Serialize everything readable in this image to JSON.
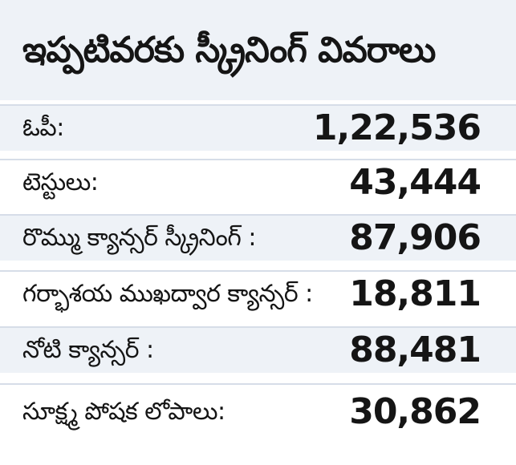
{
  "title": "ఇప్పటివరకు స్క్రీనింగ్ వివరాలు",
  "rows": [
    {
      "label": "ఓపీ:",
      "value": "1,22,536"
    },
    {
      "label": "టెస్టులు:",
      "value": "43,444"
    },
    {
      "label": "రొమ్ము క్యాన్సర్ స్క్రీనింగ్ :",
      "value": "87,906"
    },
    {
      "label": "గర్భాశయ ముఖద్వార క్యాన్సర్ :",
      "value": "18,811"
    },
    {
      "label": "నోటి క్యాన్సర్ :",
      "value": "88,481"
    },
    {
      "label": "సూక్ష్మ పోషక లోపాలు:",
      "value": "30,862"
    }
  ],
  "colors": {
    "band": "#eef2f7",
    "divider": "#d6dde8",
    "text": "#151515"
  }
}
